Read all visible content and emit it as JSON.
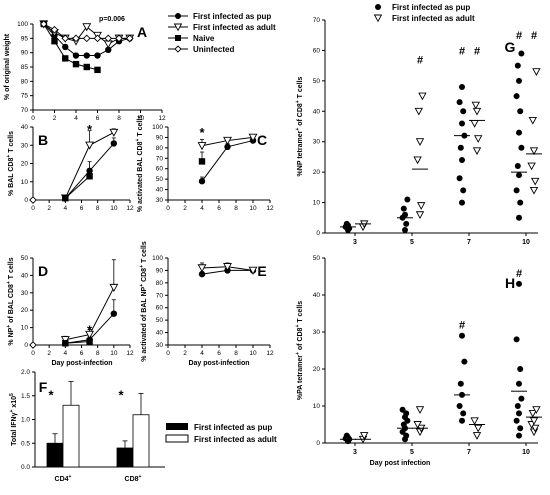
{
  "panel_labels": [
    "A",
    "B",
    "C",
    "D",
    "E",
    "F",
    "G",
    "H"
  ],
  "legend": {
    "pup": "First infected as pup",
    "adult": "First infected as adult",
    "naive": "Naive",
    "uninfected": "Uninfected"
  },
  "colors": {
    "filled": "#000000",
    "open": "#ffffff",
    "line": "#000000"
  },
  "chart_data": [
    {
      "panel": "A",
      "type": "line",
      "annotation": "p=0.006",
      "ylabel": "% of original weight",
      "xlabel": "",
      "xlim": [
        0,
        12
      ],
      "ylim": [
        70,
        100
      ],
      "xticks": [
        0,
        2,
        4,
        6,
        8,
        10,
        12
      ],
      "yticks": [
        70,
        75,
        80,
        85,
        90,
        95,
        100
      ],
      "series": [
        {
          "name": "First infected as pup",
          "marker": "circle-filled",
          "x": [
            1,
            2,
            3,
            4,
            5,
            6,
            7,
            8,
            9
          ],
          "y": [
            100,
            96,
            92,
            89,
            89,
            89,
            91,
            94,
            95
          ]
        },
        {
          "name": "First infected as adult",
          "marker": "triangle-open",
          "x": [
            1,
            2,
            3,
            4,
            5,
            6,
            7,
            8,
            9
          ],
          "y": [
            100,
            97,
            95,
            94,
            99,
            96,
            93,
            95,
            95
          ]
        },
        {
          "name": "Naive",
          "marker": "square-filled",
          "x": [
            1,
            2,
            3,
            4,
            5,
            6
          ],
          "y": [
            100,
            94,
            88,
            86,
            85,
            84
          ]
        },
        {
          "name": "Uninfected",
          "marker": "diamond-open",
          "x": [
            1,
            2,
            3,
            4,
            5,
            6,
            7,
            8,
            9
          ],
          "y": [
            100,
            98,
            95,
            95,
            95,
            95,
            95,
            95,
            95
          ]
        }
      ]
    },
    {
      "panel": "B",
      "type": "line",
      "ylabel": "% BAL CD8+ T cells",
      "xlabel": "",
      "xlim": [
        0,
        12
      ],
      "ylim": [
        0,
        40
      ],
      "yticks": [
        0,
        10,
        20,
        30,
        40
      ],
      "xticks": [
        0,
        2,
        4,
        6,
        8,
        10,
        12
      ],
      "star_at": [
        7,
        40
      ],
      "series": [
        {
          "name": "First infected as pup",
          "marker": "circle-filled",
          "x": [
            4,
            7,
            10
          ],
          "y": [
            1,
            16,
            31
          ],
          "err": [
            0,
            5,
            3
          ]
        },
        {
          "name": "First infected as adult",
          "marker": "triangle-open",
          "x": [
            4,
            7,
            10
          ],
          "y": [
            1,
            30,
            37
          ],
          "err": [
            0,
            8,
            2
          ]
        },
        {
          "name": "Naive",
          "marker": "square-filled",
          "x": [
            4,
            7
          ],
          "y": [
            1,
            13
          ],
          "err": [
            0,
            2
          ]
        },
        {
          "name": "Uninfected",
          "marker": "diamond-open",
          "x": [
            0
          ],
          "y": [
            0
          ],
          "err": [
            0
          ]
        }
      ]
    },
    {
      "panel": "C",
      "type": "line",
      "ylabel": "% activated BAL CD8+ T cells",
      "xlabel": "",
      "xlim": [
        0,
        12
      ],
      "ylim": [
        30,
        100
      ],
      "yticks": [
        30,
        40,
        50,
        60,
        70,
        80,
        90,
        100
      ],
      "xticks": [
        0,
        2,
        4,
        6,
        8,
        10,
        12
      ],
      "star_at": [
        4,
        97
      ],
      "series": [
        {
          "name": "First infected as pup",
          "marker": "circle-filled",
          "x": [
            4,
            7,
            10
          ],
          "y": [
            48,
            81,
            87
          ],
          "err": [
            4,
            3,
            2
          ]
        },
        {
          "name": "First infected as adult",
          "marker": "triangle-open",
          "x": [
            4,
            7,
            10
          ],
          "y": [
            82,
            87,
            90
          ],
          "err": [
            6,
            3,
            2
          ]
        },
        {
          "name": "Naive",
          "marker": "square-filled",
          "x": [
            4
          ],
          "y": [
            67
          ],
          "err": [
            9
          ]
        }
      ]
    },
    {
      "panel": "D",
      "type": "line",
      "ylabel": "% NP+ of BAL CD8+ T cells",
      "xlabel": "Day post-infection",
      "xlim": [
        0,
        12
      ],
      "ylim": [
        0,
        50
      ],
      "yticks": [
        0,
        10,
        20,
        30,
        40,
        50
      ],
      "xticks": [
        0,
        2,
        4,
        6,
        8,
        10,
        12
      ],
      "star_at": [
        7,
        10
      ],
      "series": [
        {
          "name": "First infected as pup",
          "marker": "circle-filled",
          "x": [
            4,
            7,
            10
          ],
          "y": [
            1,
            3,
            18
          ],
          "err": [
            1,
            2,
            8
          ]
        },
        {
          "name": "First infected as adult",
          "marker": "triangle-open",
          "x": [
            4,
            7,
            10
          ],
          "y": [
            3,
            6,
            33
          ],
          "err": [
            2,
            3,
            16
          ]
        },
        {
          "name": "Naive",
          "marker": "square-filled",
          "x": [
            4,
            7
          ],
          "y": [
            1,
            2
          ],
          "err": [
            0,
            1
          ]
        },
        {
          "name": "Uninfected",
          "marker": "diamond-open",
          "x": [
            0
          ],
          "y": [
            0
          ],
          "err": [
            0
          ]
        }
      ]
    },
    {
      "panel": "E",
      "type": "line",
      "ylabel": "% activated of BAL NP+ CD8+ T cells",
      "xlabel": "Day post-infection",
      "xlim": [
        0,
        12
      ],
      "ylim": [
        30,
        100
      ],
      "yticks": [
        30,
        40,
        50,
        60,
        70,
        80,
        90,
        100
      ],
      "xticks": [
        0,
        2,
        4,
        6,
        8,
        10,
        12
      ],
      "series": [
        {
          "name": "First infected as pup",
          "marker": "circle-filled",
          "x": [
            4,
            7,
            10
          ],
          "y": [
            87,
            90,
            90
          ],
          "err": [
            2,
            2,
            2
          ]
        },
        {
          "name": "First infected as adult",
          "marker": "triangle-open",
          "x": [
            4,
            7,
            10
          ],
          "y": [
            92,
            93,
            90
          ],
          "err": [
            4,
            3,
            2
          ]
        }
      ]
    },
    {
      "panel": "F",
      "type": "bar",
      "ylabel": "Total IFNγ+ x10^5",
      "xlabel": "",
      "categories": [
        "CD4+",
        "CD8+"
      ],
      "ylim": [
        0,
        2.0
      ],
      "yticks": [
        0.0,
        0.5,
        1.0,
        1.5,
        2.0
      ],
      "series": [
        {
          "name": "First infected as pup",
          "values": [
            0.5,
            0.4
          ],
          "err": [
            0.2,
            0.15
          ]
        },
        {
          "name": "First infected as adult",
          "values": [
            1.3,
            1.1
          ],
          "err": [
            0.5,
            0.45
          ]
        }
      ]
    },
    {
      "panel": "G",
      "type": "scatter",
      "ylabel": "%NP tetramer+ of CD8+ T cells",
      "xlabel": "",
      "categories": [
        "3",
        "5",
        "7",
        "10"
      ],
      "ylim": [
        0,
        70
      ],
      "yticks": [
        0,
        10,
        20,
        30,
        40,
        50,
        60,
        70
      ],
      "hash_markers": [
        {
          "category": "5",
          "group": "adult",
          "y": 57
        },
        {
          "category": "7",
          "group": "pup",
          "y": 60
        },
        {
          "category": "7",
          "group": "adult",
          "y": 60
        },
        {
          "category": "10",
          "group": "pup",
          "y": 65
        },
        {
          "category": "10",
          "group": "adult",
          "y": 65
        }
      ],
      "series": [
        {
          "name": "First infected as pup",
          "marker": "circle-filled",
          "points": [
            [
              0,
              [
                1,
                1.5,
                2,
                2.5,
                3
              ]
            ],
            [
              1,
              [
                1,
                3,
                5,
                6,
                8,
                11
              ]
            ],
            [
              2,
              [
                10,
                14,
                18,
                24,
                28,
                32,
                36,
                40,
                43,
                48
              ]
            ],
            [
              3,
              [
                5,
                10,
                14,
                19,
                22,
                28,
                33,
                40,
                45,
                50,
                55,
                59
              ]
            ]
          ],
          "means": [
            2,
            5,
            32,
            20
          ]
        },
        {
          "name": "First infected as adult",
          "marker": "triangle-open",
          "points": [
            [
              0,
              [
                2,
                3
              ]
            ],
            [
              1,
              [
                6,
                9,
                24,
                30,
                40,
                45
              ]
            ],
            [
              2,
              [
                27,
                31,
                36,
                40,
                42
              ]
            ],
            [
              3,
              [
                14,
                17,
                22,
                27,
                37,
                53
              ]
            ]
          ],
          "means": [
            3,
            21,
            37,
            26
          ]
        }
      ]
    },
    {
      "panel": "H",
      "type": "scatter",
      "ylabel": "%PA tetramer+ of CD8+ T cells",
      "xlabel": "Day post infection",
      "categories": [
        "3",
        "5",
        "7",
        "10"
      ],
      "ylim": [
        0,
        50
      ],
      "yticks": [
        0,
        10,
        20,
        30,
        40,
        50
      ],
      "hash_markers": [
        {
          "category": "7",
          "group": "pup",
          "y": 32
        },
        {
          "category": "10",
          "group": "pup",
          "y": 46
        }
      ],
      "series": [
        {
          "name": "First infected as pup",
          "marker": "circle-filled",
          "points": [
            [
              0,
              [
                0.5,
                1,
                1.2,
                1.5,
                2
              ]
            ],
            [
              1,
              [
                1,
                2,
                3,
                4,
                5,
                6,
                7,
                8,
                9
              ]
            ],
            [
              2,
              [
                6,
                8,
                10,
                13,
                16,
                22,
                29
              ]
            ],
            [
              3,
              [
                2,
                4,
                6,
                8,
                10,
                12,
                16,
                20,
                28,
                43
              ]
            ]
          ],
          "means": [
            1,
            4,
            13,
            14
          ]
        },
        {
          "name": "First infected as adult",
          "marker": "triangle-open",
          "points": [
            [
              0,
              [
                1,
                2
              ]
            ],
            [
              1,
              [
                3,
                4,
                5,
                9
              ]
            ],
            [
              2,
              [
                2,
                4,
                6
              ]
            ],
            [
              3,
              [
                3,
                4,
                5,
                6,
                8,
                9
              ]
            ]
          ],
          "means": [
            1,
            4,
            5,
            7
          ]
        }
      ]
    }
  ]
}
